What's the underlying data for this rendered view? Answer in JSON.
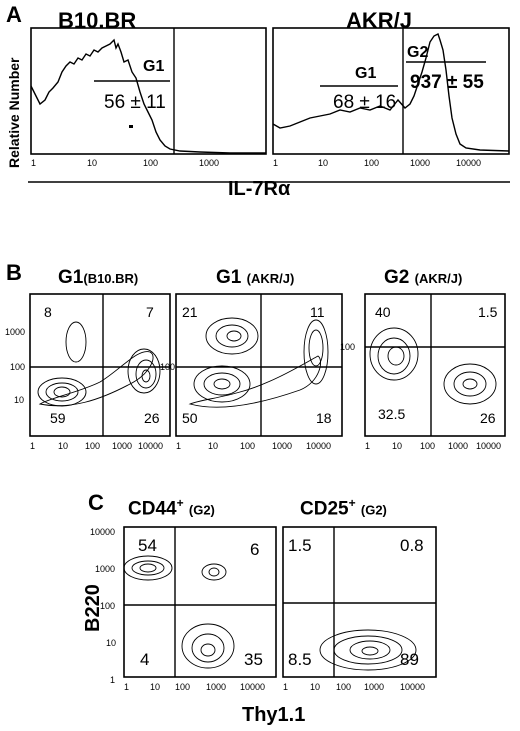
{
  "panel_a": {
    "letter": "A",
    "title_left": "B10.BR",
    "title_right": "AKR/J",
    "ylabel": "Relative Number",
    "xlabel": "IL-7Rα",
    "left_gate": "G1",
    "left_stat": "56 ± 11",
    "right_gate1": "G1",
    "right_stat1": "68 ± 16",
    "right_gate2": "G2",
    "right_stat2": "937 ± 55",
    "x_ticks_left": [
      "1",
      "10",
      "100",
      "1000"
    ],
    "x_ticks_right": [
      "1",
      "10",
      "100",
      "1000",
      "10000"
    ]
  },
  "panel_b": {
    "letter": "B",
    "plots": [
      {
        "title": "G1",
        "sub": "(B10.BR)",
        "q": [
          "8",
          "7",
          "59",
          "26"
        ]
      },
      {
        "title": "G1",
        "sub": "(AKR/J)",
        "q": [
          "21",
          "11",
          "50",
          "18"
        ]
      },
      {
        "title": "G2",
        "sub": "(AKR/J)",
        "q": [
          "40",
          "1.5",
          "32.5",
          "26"
        ]
      }
    ],
    "y_ticks": [
      "10",
      "100",
      "1000"
    ],
    "x_ticks": [
      "1",
      "10",
      "100",
      "1000",
      "10000"
    ]
  },
  "panel_c": {
    "letter": "C",
    "plots": [
      {
        "title": "CD44",
        "sup": "+",
        "sub": "(G2)",
        "q": [
          "54",
          "6",
          "4",
          "35"
        ]
      },
      {
        "title": "CD25",
        "sup": "+",
        "sub": "(G2)",
        "q": [
          "1.5",
          "0.8",
          "8.5",
          "89"
        ]
      }
    ],
    "ylabel": "B220",
    "xlabel": "Thy1.1",
    "y_ticks": [
      "1",
      "10",
      "100",
      "1000",
      "10000"
    ],
    "x_ticks": [
      "1",
      "10",
      "100",
      "1000",
      "10000"
    ]
  }
}
